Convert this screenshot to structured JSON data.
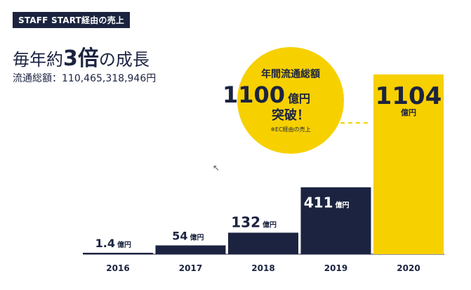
{
  "tag_label": "STAFF START経由の売上",
  "headline": {
    "prefix": "毎年約",
    "emphasis": "3倍",
    "suffix": "の成長"
  },
  "total": {
    "label": "流通総額：",
    "value": "110,465,318,946円"
  },
  "callout": {
    "line1": "年間流通総額",
    "number": "1100",
    "unit": "億円",
    "line3": "突破！",
    "note": "※EC経由の売上"
  },
  "colors": {
    "navy": "#1b2340",
    "yellow": "#f7d000",
    "text": "#1b2340"
  },
  "chart_data": {
    "type": "bar",
    "categories": [
      "2016",
      "2017",
      "2018",
      "2019",
      "2020"
    ],
    "values": [
      1.4,
      54,
      132,
      411,
      1104
    ],
    "value_labels": [
      "1.4",
      "54",
      "132",
      "411",
      "1104"
    ],
    "unit": "億円",
    "highlight_index": 4,
    "reference_value": 1100,
    "title": "",
    "xlabel": "",
    "ylabel": "",
    "ylim": [
      0,
      1104
    ],
    "grid": false,
    "legend": "none"
  }
}
